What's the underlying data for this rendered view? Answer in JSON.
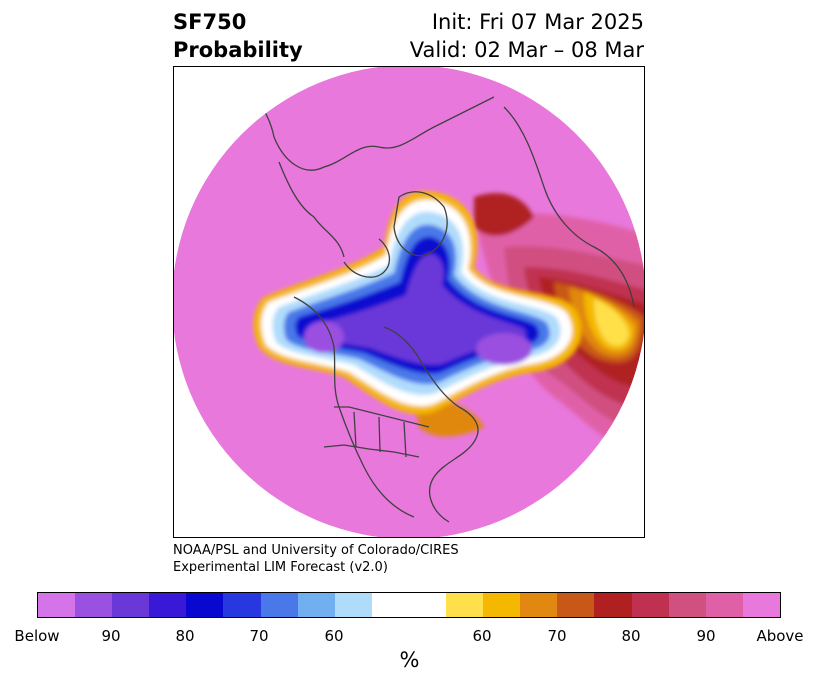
{
  "title": {
    "left_line1": "SF750",
    "left_line2": "Probability",
    "right_line1": "Init: Fri 07 Mar 2025",
    "right_line2": "Valid: 02 Mar – 08 Mar"
  },
  "credit": {
    "line1": "NOAA/PSL and University of Colorado/CIRES",
    "line2": "Experimental LIM Forecast (v2.0)"
  },
  "colorbar": {
    "unit": "%",
    "tick_labels": [
      "Below",
      "90",
      "80",
      "70",
      "60",
      "60",
      "70",
      "80",
      "90",
      "Above"
    ],
    "colors": [
      "#d474e8",
      "#9a50e0",
      "#6a38d8",
      "#3a18d8",
      "#0808d0",
      "#2838e0",
      "#4a78e8",
      "#70b0f0",
      "#b0dcfc",
      "#ffffff",
      "#ffe04a",
      "#f4b800",
      "#e08810",
      "#c85818",
      "#b02020",
      "#c03050",
      "#d05080",
      "#e060a8",
      "#e878dc"
    ]
  },
  "map": {
    "background_color": "#e878dc",
    "coastline_color": "#404040"
  }
}
